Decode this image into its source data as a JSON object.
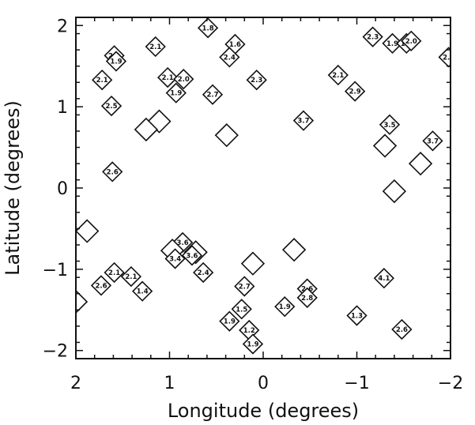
{
  "chart_data": {
    "type": "scatter",
    "xlabel": "Longitude (degrees)",
    "ylabel": "Latitude (degrees)",
    "xlim": [
      2,
      -2
    ],
    "ylim": [
      -2.1,
      2.1
    ],
    "x_ticks": [
      2,
      1,
      0,
      -1,
      -2
    ],
    "x_tick_labels": [
      "2",
      "1",
      "0",
      "−1",
      "−2"
    ],
    "y_ticks": [
      2,
      1,
      0,
      -1,
      -2
    ],
    "y_tick_labels": [
      "2",
      "1",
      "0",
      "−1",
      "−2"
    ],
    "marker": "diamond",
    "points": [
      {
        "x": 0.59,
        "y": 1.97,
        "label": "1.8"
      },
      {
        "x": 1.15,
        "y": 1.74,
        "label": "2.1"
      },
      {
        "x": 0.3,
        "y": 1.77,
        "label": "1.6"
      },
      {
        "x": 0.36,
        "y": 1.61,
        "label": "2.4"
      },
      {
        "x": 1.59,
        "y": 1.63,
        "label": "2.1"
      },
      {
        "x": 1.57,
        "y": 1.56,
        "label": "1.9"
      },
      {
        "x": 1.72,
        "y": 1.33,
        "label": "2.1"
      },
      {
        "x": 1.02,
        "y": 1.36,
        "label": "2.1"
      },
      {
        "x": 0.85,
        "y": 1.34,
        "label": "2.0"
      },
      {
        "x": 0.93,
        "y": 1.17,
        "label": "1.9"
      },
      {
        "x": 0.54,
        "y": 1.15,
        "label": "2.7"
      },
      {
        "x": 0.07,
        "y": 1.33,
        "label": "2.3"
      },
      {
        "x": 1.62,
        "y": 1.01,
        "label": "2.5"
      },
      {
        "x": 1.11,
        "y": 0.82,
        "label": ""
      },
      {
        "x": 1.25,
        "y": 0.72,
        "label": ""
      },
      {
        "x": 0.39,
        "y": 0.65,
        "label": ""
      },
      {
        "x": -0.43,
        "y": 0.83,
        "label": "3.7"
      },
      {
        "x": -1.17,
        "y": 1.86,
        "label": "2.3"
      },
      {
        "x": -1.38,
        "y": 1.78,
        "label": "1.9"
      },
      {
        "x": -1.53,
        "y": 1.78,
        "label": "1.7"
      },
      {
        "x": -1.58,
        "y": 1.81,
        "label": "2.0"
      },
      {
        "x": -1.98,
        "y": 1.61,
        "label": "2.1"
      },
      {
        "x": -0.8,
        "y": 1.39,
        "label": "2.1"
      },
      {
        "x": -0.98,
        "y": 1.19,
        "label": "2.9"
      },
      {
        "x": -1.35,
        "y": 0.78,
        "label": "3.5"
      },
      {
        "x": -1.3,
        "y": 0.52,
        "label": ""
      },
      {
        "x": -1.81,
        "y": 0.58,
        "label": "3.7"
      },
      {
        "x": -1.68,
        "y": 0.3,
        "label": ""
      },
      {
        "x": -1.4,
        "y": -0.04,
        "label": ""
      },
      {
        "x": 1.61,
        "y": 0.2,
        "label": "2.6"
      },
      {
        "x": 1.88,
        "y": -0.53,
        "label": ""
      },
      {
        "x": 0.86,
        "y": -0.67,
        "label": "3.6"
      },
      {
        "x": 0.97,
        "y": -0.77,
        "label": ""
      },
      {
        "x": 0.72,
        "y": -0.79,
        "label": ""
      },
      {
        "x": 0.76,
        "y": -0.83,
        "label": "3.6"
      },
      {
        "x": 0.94,
        "y": -0.87,
        "label": "3.4"
      },
      {
        "x": 0.64,
        "y": -1.04,
        "label": "2.4"
      },
      {
        "x": 1.59,
        "y": -1.04,
        "label": "2.1"
      },
      {
        "x": 1.73,
        "y": -1.2,
        "label": "2.6"
      },
      {
        "x": 1.41,
        "y": -1.09,
        "label": "2.1"
      },
      {
        "x": 1.29,
        "y": -1.27,
        "label": "1.4"
      },
      {
        "x": 0.11,
        "y": -0.93,
        "label": ""
      },
      {
        "x": 0.2,
        "y": -1.21,
        "label": "2.7"
      },
      {
        "x": 0.23,
        "y": -1.49,
        "label": "1.5"
      },
      {
        "x": 0.36,
        "y": -1.64,
        "label": "1.9"
      },
      {
        "x": 0.15,
        "y": -1.75,
        "label": "1.2"
      },
      {
        "x": 0.11,
        "y": -1.92,
        "label": "1.9"
      },
      {
        "x": -0.33,
        "y": -0.76,
        "label": ""
      },
      {
        "x": -0.23,
        "y": -1.46,
        "label": "1.9"
      },
      {
        "x": -0.47,
        "y": -1.24,
        "label": "2.6"
      },
      {
        "x": -0.47,
        "y": -1.35,
        "label": "2.8"
      },
      {
        "x": -1.0,
        "y": -1.57,
        "label": "1.3"
      },
      {
        "x": -1.29,
        "y": -1.11,
        "label": "4.1"
      },
      {
        "x": -1.48,
        "y": -1.74,
        "label": "2.6"
      },
      {
        "x": 2.0,
        "y": -1.4,
        "label": ""
      }
    ]
  }
}
